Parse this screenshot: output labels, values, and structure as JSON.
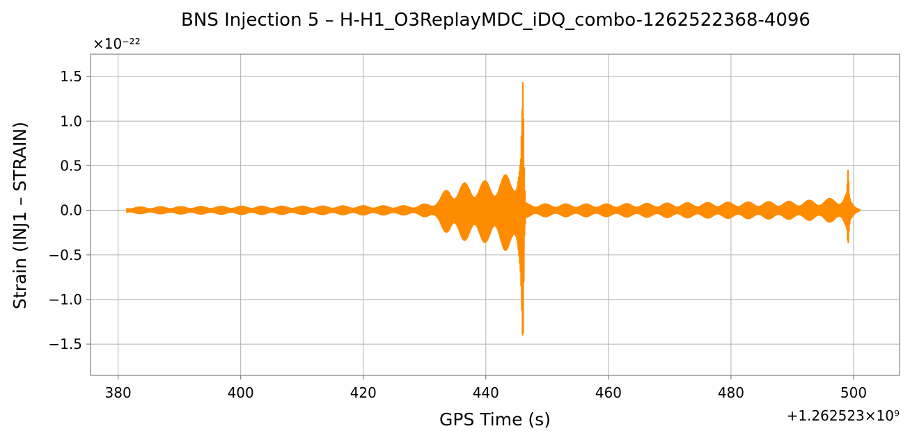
{
  "chart_data": {
    "type": "line",
    "title": "BNS Injection 5 – H-H1_O3ReplayMDC_iDQ_combo-1262522368-4096",
    "xlabel": "GPS Time (s)",
    "ylabel": "Strain (INJ1 – STRAIN)",
    "x_offset_label": "+1.262523×10⁹",
    "y_scale_label": "×10⁻²²",
    "xlim": [
      375.5,
      507.5
    ],
    "ylim": [
      -1.85,
      1.75
    ],
    "x_ticks": [
      380,
      400,
      420,
      440,
      460,
      480,
      500
    ],
    "x_tick_labels": [
      "380",
      "400",
      "420",
      "440",
      "460",
      "480",
      "500"
    ],
    "y_ticks": [
      1.5,
      1.0,
      0.5,
      0.0,
      -0.5,
      -1.0,
      -1.5
    ],
    "y_tick_labels": [
      "1.5",
      "1.0",
      "0.5",
      "0.0",
      "−0.5",
      "−1.0",
      "−1.5"
    ],
    "grid": true,
    "series": [
      {
        "color": "#ff8c00",
        "envelope": {
          "x": [
            381.4,
            390,
            400,
            410,
            420,
            428,
            431,
            432.5,
            434,
            436,
            438,
            440,
            442,
            444,
            445,
            445.7,
            446.05,
            446.3,
            446.5,
            450,
            460,
            470,
            480,
            490,
            495,
            498,
            498.9,
            499.1,
            499.3,
            499.5,
            500,
            500.9,
            501.1
          ],
          "upper": [
            0.035,
            0.04,
            0.045,
            0.045,
            0.05,
            0.05,
            0.08,
            0.15,
            0.27,
            0.3,
            0.32,
            0.33,
            0.36,
            0.42,
            0.5,
            0.75,
            1.58,
            0.3,
            0.08,
            0.07,
            0.07,
            0.08,
            0.09,
            0.1,
            0.12,
            0.15,
            0.22,
            0.48,
            0.18,
            0.1,
            0.06,
            0.02,
            0.0
          ],
          "lower": [
            -0.035,
            -0.04,
            -0.045,
            -0.045,
            -0.05,
            -0.05,
            -0.08,
            -0.16,
            -0.3,
            -0.33,
            -0.35,
            -0.36,
            -0.4,
            -0.48,
            -0.65,
            -0.95,
            -1.7,
            -0.3,
            -0.08,
            -0.07,
            -0.07,
            -0.08,
            -0.09,
            -0.1,
            -0.12,
            -0.15,
            -0.22,
            -0.42,
            -0.18,
            -0.1,
            -0.06,
            -0.02,
            0.0
          ]
        }
      }
    ]
  }
}
